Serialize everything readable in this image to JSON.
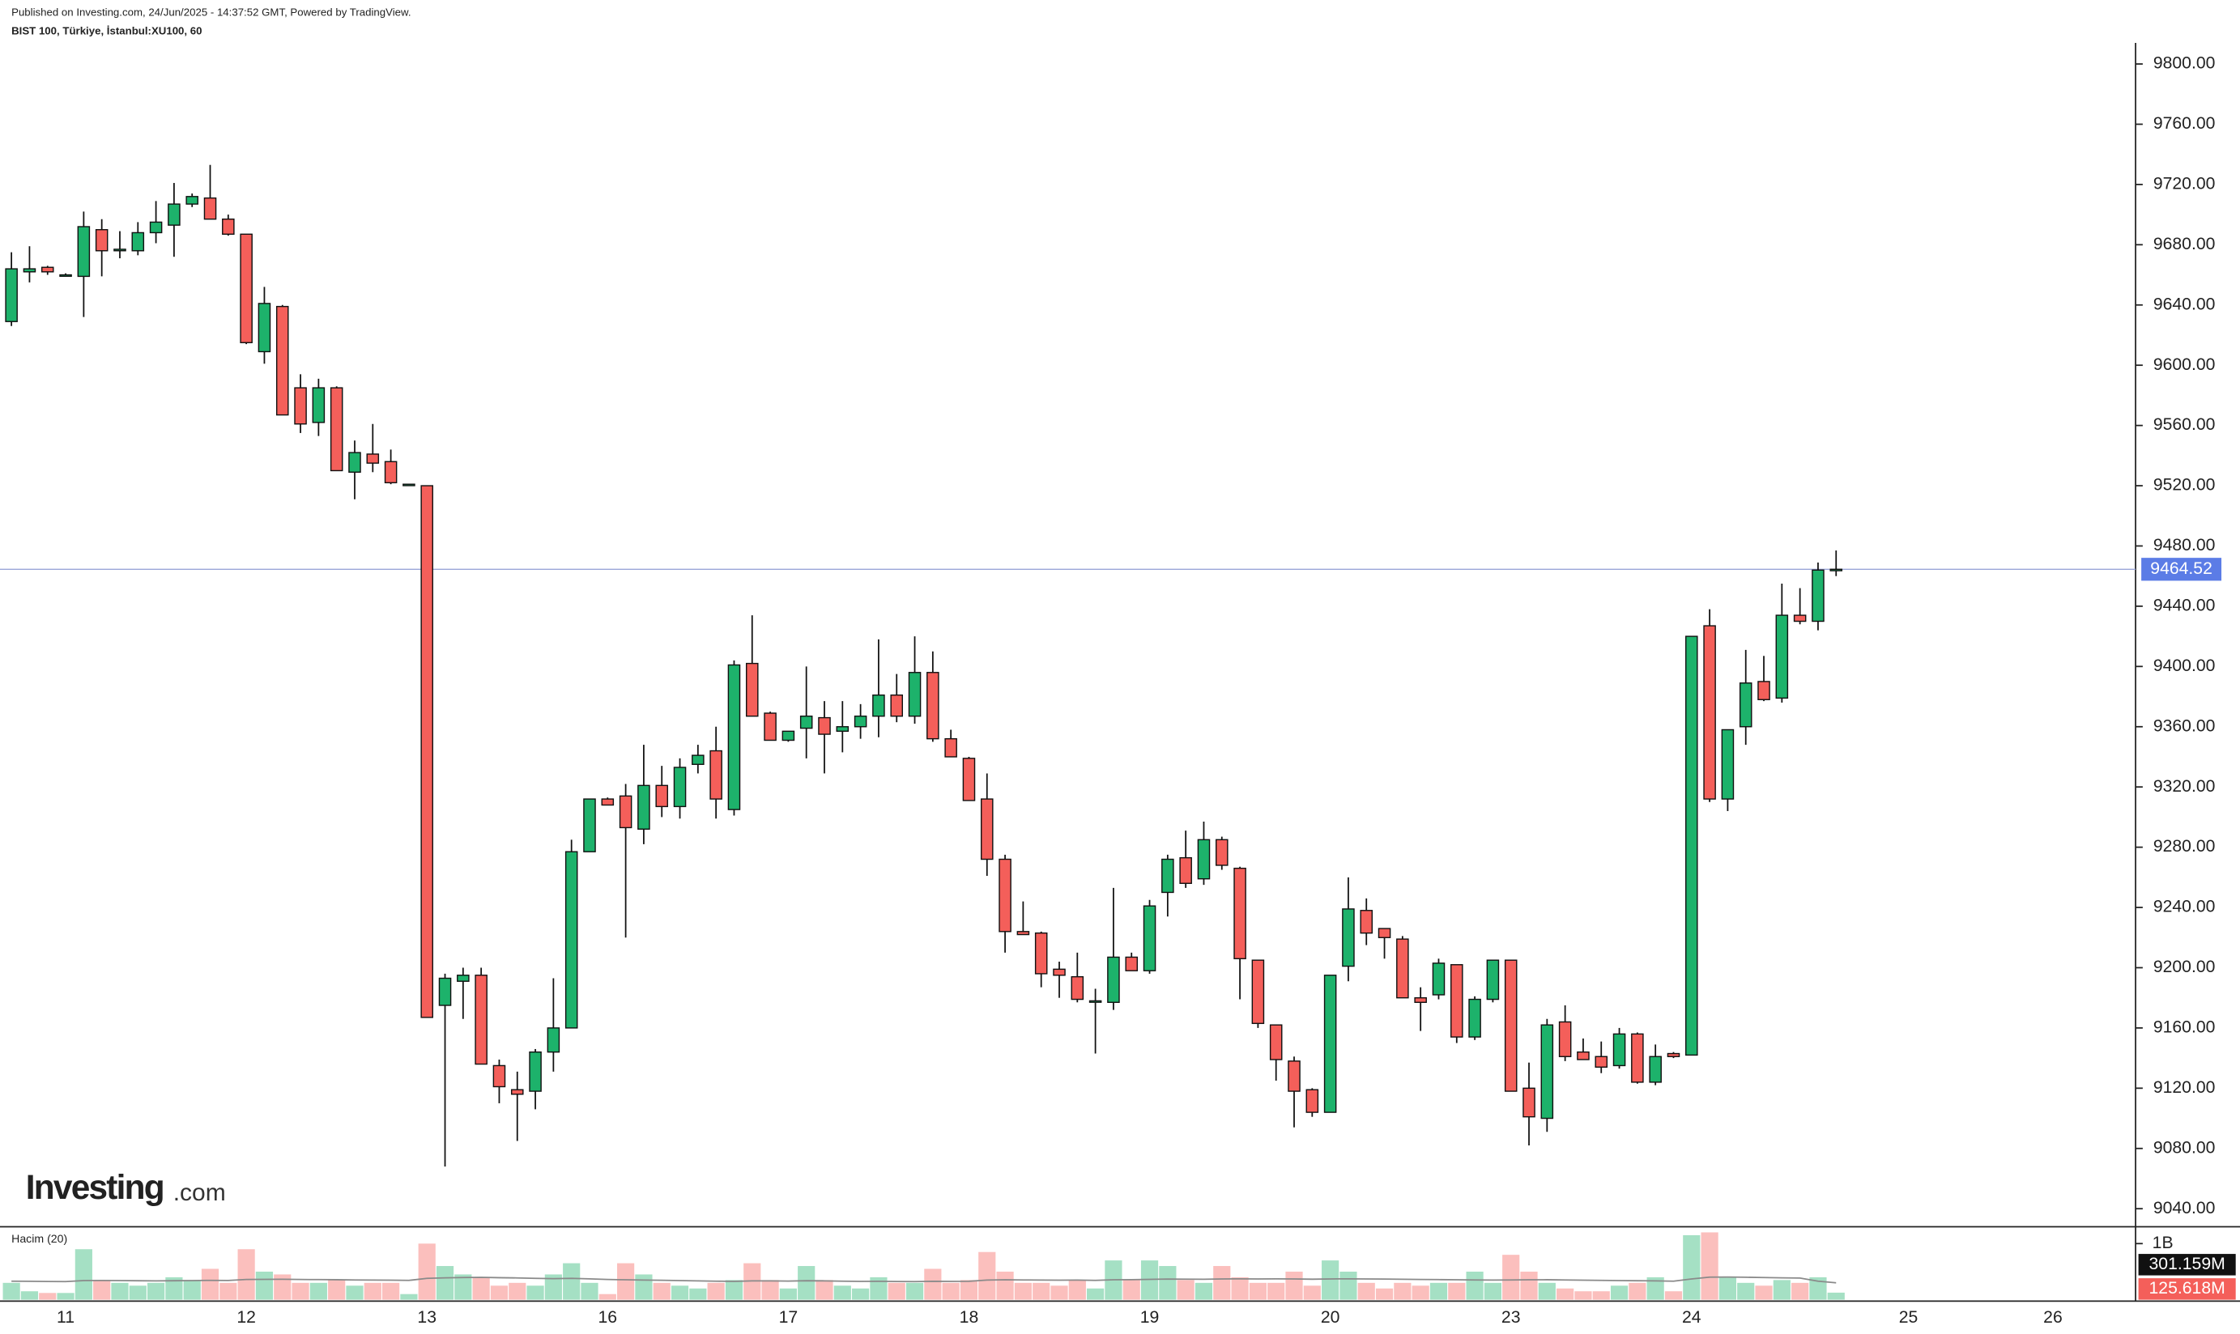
{
  "header": {
    "published": "Published on Investing.com, 24/Jun/2025 - 14:37:52 GMT, Powered by TradingView.",
    "symbol": "BIST 100, Türkiye, İstanbul:XU100, 60"
  },
  "logo": {
    "name": "Investing",
    "suffix": ".com"
  },
  "chart_data": [
    {
      "type": "candlestick",
      "up_color": "#1db26b",
      "down_color": "#f45f5a",
      "last_price_color": "#5b7ce6",
      "categories": [
        null,
        null,
        null,
        "11",
        null,
        null,
        null,
        null,
        null,
        null,
        null,
        null,
        null,
        "12",
        null,
        null,
        null,
        null,
        null,
        null,
        null,
        null,
        null,
        "13",
        null,
        null,
        null,
        null,
        null,
        null,
        null,
        null,
        null,
        "16",
        null,
        null,
        null,
        null,
        null,
        null,
        null,
        null,
        null,
        "17",
        null,
        null,
        null,
        null,
        null,
        null,
        null,
        null,
        null,
        "18",
        null,
        null,
        null,
        null,
        null,
        null,
        null,
        null,
        null,
        "19",
        null,
        null,
        null,
        null,
        null,
        null,
        null,
        null,
        null,
        "20",
        null,
        null,
        null,
        null,
        null,
        null,
        null,
        null,
        null,
        "23",
        null,
        null,
        null,
        null,
        null,
        null,
        null,
        null,
        null,
        "24",
        null,
        null,
        null,
        null,
        null,
        null,
        null,
        null,
        null,
        null,
        null,
        "25",
        null,
        null,
        null,
        null,
        null,
        null,
        null,
        "26",
        null
      ],
      "open": [
        9629,
        9662,
        9665,
        9660,
        9659,
        9690,
        9676,
        9676,
        9688,
        9693,
        9707,
        9711,
        9697,
        9687,
        9609,
        9639,
        9585,
        9562,
        9585,
        9529,
        9541,
        9536,
        9521,
        9520,
        9175,
        9191,
        9195,
        9135,
        9119,
        9118,
        9144,
        9160,
        9277,
        9312,
        9314,
        9292,
        9321,
        9307,
        9335,
        9344,
        9305,
        9402,
        9369,
        9351,
        9359,
        9366,
        9357,
        9360,
        9367,
        9381,
        9367,
        9396,
        9352,
        9339,
        9312,
        9272,
        9224,
        9223,
        9199,
        9194,
        9178,
        9177,
        9207,
        9198,
        9250,
        9273,
        9259,
        9285,
        9266,
        9205,
        9162,
        9138,
        9119,
        9104,
        9201,
        9238,
        9226,
        9219,
        9180,
        9182,
        9202,
        9154,
        9179,
        9205,
        9120,
        9100,
        9164,
        9144,
        9141,
        9135,
        9156,
        9124,
        9143,
        9142,
        9427,
        9312,
        9360,
        9390,
        9379,
        9434,
        9430,
        9464,
        null,
        null,
        null,
        null,
        null,
        null,
        null,
        null,
        null,
        null,
        null,
        null,
        null
      ],
      "high": [
        9675,
        9679,
        9666,
        9661,
        9702,
        9697,
        9689,
        9695,
        9709,
        9721,
        9714,
        9733,
        9700,
        9687,
        9652,
        9640,
        9594,
        9591,
        9586,
        9550,
        9561,
        9544,
        9521,
        9520,
        9196,
        9200,
        9200,
        9139,
        9131,
        9146,
        9193,
        9285,
        9312,
        9313,
        9322,
        9348,
        9334,
        9339,
        9348,
        9360,
        9404,
        9434,
        9370,
        9357,
        9400,
        9377,
        9377,
        9375,
        9418,
        9395,
        9420,
        9410,
        9358,
        9340,
        9329,
        9275,
        9244,
        9224,
        9204,
        9210,
        9186,
        9253,
        9210,
        9245,
        9275,
        9291,
        9297,
        9287,
        9267,
        9205,
        9162,
        9141,
        9120,
        9195,
        9260,
        9246,
        9226,
        9221,
        9187,
        9206,
        9202,
        9181,
        9205,
        9205,
        9137,
        9166,
        9175,
        9153,
        9151,
        9160,
        9157,
        9149,
        9144,
        9420,
        9438,
        9358,
        9411,
        9407,
        9455,
        9452,
        9469,
        9477,
        null,
        null,
        null,
        null,
        null,
        null,
        null,
        null,
        null,
        null,
        null,
        null,
        null
      ],
      "low": [
        9626,
        9655,
        9660,
        9659,
        9632,
        9659,
        9671,
        9673,
        9681,
        9672,
        9705,
        9697,
        9686,
        9614,
        9601,
        9567,
        9555,
        9553,
        9530,
        9511,
        9529,
        9521,
        9520,
        9167,
        9068,
        9166,
        9136,
        9110,
        9085,
        9106,
        9131,
        9160,
        9277,
        9308,
        9220,
        9282,
        9300,
        9299,
        9329,
        9299,
        9301,
        9367,
        9351,
        9350,
        9339,
        9329,
        9343,
        9352,
        9353,
        9363,
        9362,
        9350,
        9340,
        9311,
        9261,
        9210,
        9222,
        9187,
        9180,
        9177,
        9143,
        9172,
        9198,
        9196,
        9234,
        9253,
        9255,
        9265,
        9179,
        9160,
        9125,
        9094,
        9101,
        9104,
        9191,
        9215,
        9206,
        9180,
        9158,
        9179,
        9150,
        9152,
        9177,
        9118,
        9082,
        9091,
        9138,
        9139,
        9130,
        9133,
        9123,
        9122,
        9140,
        9142,
        9310,
        9304,
        9348,
        9377,
        9376,
        9428,
        9424,
        9460,
        null,
        null,
        null,
        null,
        null,
        null,
        null,
        null,
        null,
        null,
        null,
        null,
        null
      ],
      "close": [
        9664,
        9664,
        9662,
        9660,
        9692,
        9676,
        9677,
        9688,
        9695,
        9707,
        9712,
        9697,
        9687,
        9615,
        9641,
        9567,
        9561,
        9585,
        9530,
        9542,
        9535,
        9522,
        9521,
        9167,
        9193,
        9195,
        9136,
        9121,
        9116,
        9144,
        9160,
        9277,
        9312,
        9308,
        9293,
        9321,
        9307,
        9333,
        9341,
        9312,
        9401,
        9367,
        9351,
        9357,
        9367,
        9355,
        9360,
        9367,
        9381,
        9367,
        9396,
        9352,
        9340,
        9311,
        9272,
        9224,
        9222,
        9196,
        9195,
        9179,
        9178,
        9207,
        9198,
        9241,
        9272,
        9256,
        9285,
        9268,
        9206,
        9163,
        9139,
        9118,
        9104,
        9195,
        9239,
        9223,
        9220,
        9180,
        9177,
        9203,
        9154,
        9179,
        9205,
        9118,
        9101,
        9162,
        9141,
        9139,
        9134,
        9156,
        9124,
        9141,
        9141,
        9420,
        9312,
        9358,
        9389,
        9378,
        9434,
        9430,
        9464,
        9464.52,
        null,
        null,
        null,
        null,
        null,
        null,
        null,
        null,
        null,
        null,
        null,
        null,
        null
      ],
      "last_price": 9464.52,
      "ylim": [
        9028,
        9814
      ],
      "yticks": [
        {
          "value": 9040,
          "label": "9040.00"
        },
        {
          "value": 9080,
          "label": "9080.00"
        },
        {
          "value": 9120,
          "label": "9120.00"
        },
        {
          "value": 9160,
          "label": "9160.00"
        },
        {
          "value": 9200,
          "label": "9200.00"
        },
        {
          "value": 9240,
          "label": "9240.00"
        },
        {
          "value": 9280,
          "label": "9280.00"
        },
        {
          "value": 9320,
          "label": "9320.00"
        },
        {
          "value": 9360,
          "label": "9360.00"
        },
        {
          "value": 9400,
          "label": "9400.00"
        },
        {
          "value": 9440,
          "label": "9440.00"
        },
        {
          "value": 9480,
          "label": "9480.00"
        },
        {
          "value": 9520,
          "label": "9520.00"
        },
        {
          "value": 9560,
          "label": "9560.00"
        },
        {
          "value": 9600,
          "label": "9600.00"
        },
        {
          "value": 9640,
          "label": "9640.00"
        },
        {
          "value": 9680,
          "label": "9680.00"
        },
        {
          "value": 9720,
          "label": "9720.00"
        },
        {
          "value": 9760,
          "label": "9760.00"
        },
        {
          "value": 9800,
          "label": "9800.00"
        }
      ]
    },
    {
      "type": "volume",
      "title": "Hacim (20)",
      "up_color": "#1db26b",
      "down_color": "#f45f5a",
      "ma_color": "#8a8a8a",
      "values": [
        300,
        150,
        120,
        120,
        900,
        350,
        300,
        250,
        300,
        400,
        350,
        550,
        300,
        900,
        500,
        450,
        300,
        300,
        350,
        250,
        300,
        300,
        100,
        1000,
        600,
        450,
        400,
        250,
        300,
        250,
        450,
        650,
        300,
        100,
        650,
        450,
        300,
        250,
        200,
        300,
        350,
        650,
        350,
        200,
        600,
        350,
        250,
        200,
        400,
        300,
        300,
        550,
        300,
        350,
        850,
        500,
        300,
        300,
        250,
        350,
        200,
        700,
        350,
        700,
        600,
        350,
        300,
        600,
        400,
        300,
        300,
        500,
        250,
        700,
        500,
        300,
        200,
        300,
        250,
        300,
        300,
        500,
        300,
        800,
        500,
        300,
        200,
        150,
        150,
        250,
        300,
        400,
        150,
        1150,
        1200,
        400,
        300,
        250,
        350,
        300,
        400,
        125.618,
        null,
        null,
        null,
        null,
        null,
        null,
        null,
        null,
        null,
        null,
        null,
        null,
        null
      ],
      "ma_values": [
        330,
        328,
        325,
        322,
        340,
        342,
        340,
        338,
        336,
        338,
        340,
        345,
        343,
        360,
        362,
        364,
        360,
        358,
        356,
        352,
        350,
        348,
        344,
        380,
        390,
        395,
        398,
        392,
        388,
        380,
        375,
        380,
        372,
        360,
        355,
        350,
        346,
        340,
        335,
        330,
        326,
        335,
        336,
        332,
        338,
        336,
        330,
        326,
        328,
        325,
        322,
        328,
        326,
        328,
        350,
        355,
        352,
        350,
        348,
        350,
        345,
        355,
        357,
        362,
        368,
        366,
        364,
        370,
        372,
        370,
        372,
        370,
        365,
        370,
        372,
        370,
        368,
        364,
        360,
        358,
        355,
        352,
        350,
        352,
        355,
        356,
        352,
        348,
        345,
        340,
        338,
        335,
        330,
        370,
        402,
        404,
        400,
        395,
        390,
        385,
        330,
        301.159,
        null,
        null,
        null,
        null,
        null,
        null,
        null,
        null,
        null,
        null,
        null,
        null,
        null
      ],
      "ma_last_label": "301.159M",
      "last_label": "125.618M",
      "ylim": [
        0,
        1300
      ],
      "yticks": [
        {
          "value": 1000,
          "label": "1B"
        }
      ]
    }
  ]
}
